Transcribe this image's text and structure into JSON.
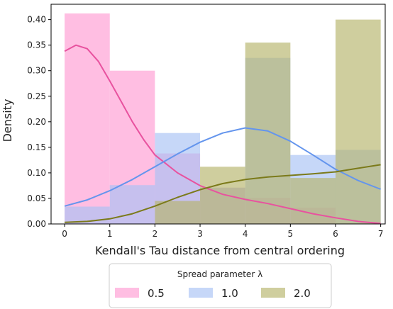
{
  "chart_data": {
    "type": "histogram-kde",
    "xlabel": "Kendall's Tau distance from central ordering",
    "ylabel": "Density",
    "xlim": [
      -0.3,
      7.1
    ],
    "ylim": [
      0,
      0.43
    ],
    "xticks": [
      "0",
      "1",
      "2",
      "3",
      "4",
      "5",
      "6",
      "7"
    ],
    "yticks": [
      "0.00",
      "0.05",
      "0.10",
      "0.15",
      "0.20",
      "0.25",
      "0.30",
      "0.35",
      "0.40"
    ],
    "bin_edges": [
      0,
      1,
      2,
      3,
      4,
      5,
      6,
      7
    ],
    "legend": {
      "title": "Spread parameter λ",
      "placement": "lower-center"
    },
    "series": [
      {
        "name": "0.5",
        "color": "#ff9bd2",
        "line_color": "#e8529f",
        "hist": [
          0.412,
          0.3,
          0.138,
          0.071,
          0.051,
          0.032,
          0.0
        ],
        "kde_x": [
          0,
          0.25,
          0.5,
          0.75,
          1,
          1.25,
          1.5,
          1.75,
          2,
          2.5,
          3,
          3.5,
          4,
          4.5,
          5,
          5.5,
          6,
          6.5,
          7
        ],
        "kde_y": [
          0.338,
          0.35,
          0.343,
          0.318,
          0.28,
          0.24,
          0.2,
          0.165,
          0.135,
          0.1,
          0.075,
          0.058,
          0.048,
          0.04,
          0.03,
          0.02,
          0.012,
          0.005,
          0.001
        ]
      },
      {
        "name": "1.0",
        "color": "#a7c1f5",
        "line_color": "#6495ed",
        "hist": [
          0.034,
          0.076,
          0.178,
          0.071,
          0.325,
          0.135,
          0.145
        ],
        "kde_x": [
          0,
          0.5,
          1,
          1.5,
          2,
          2.5,
          3,
          3.5,
          4,
          4.5,
          5,
          5.5,
          6,
          6.5,
          7
        ],
        "kde_y": [
          0.035,
          0.047,
          0.065,
          0.087,
          0.112,
          0.137,
          0.16,
          0.178,
          0.188,
          0.182,
          0.162,
          0.135,
          0.107,
          0.085,
          0.068
        ]
      },
      {
        "name": "2.0",
        "color": "#b5b46a",
        "line_color": "#7b7a1a",
        "hist": [
          0.0,
          0.0,
          0.045,
          0.112,
          0.355,
          0.09,
          0.4
        ],
        "kde_x": [
          0,
          0.5,
          1,
          1.5,
          2,
          2.5,
          3,
          3.5,
          4,
          4.5,
          5,
          5.5,
          6,
          6.5,
          7
        ],
        "kde_y": [
          0.003,
          0.005,
          0.01,
          0.02,
          0.035,
          0.052,
          0.067,
          0.079,
          0.087,
          0.092,
          0.095,
          0.098,
          0.102,
          0.109,
          0.116
        ]
      }
    ]
  }
}
